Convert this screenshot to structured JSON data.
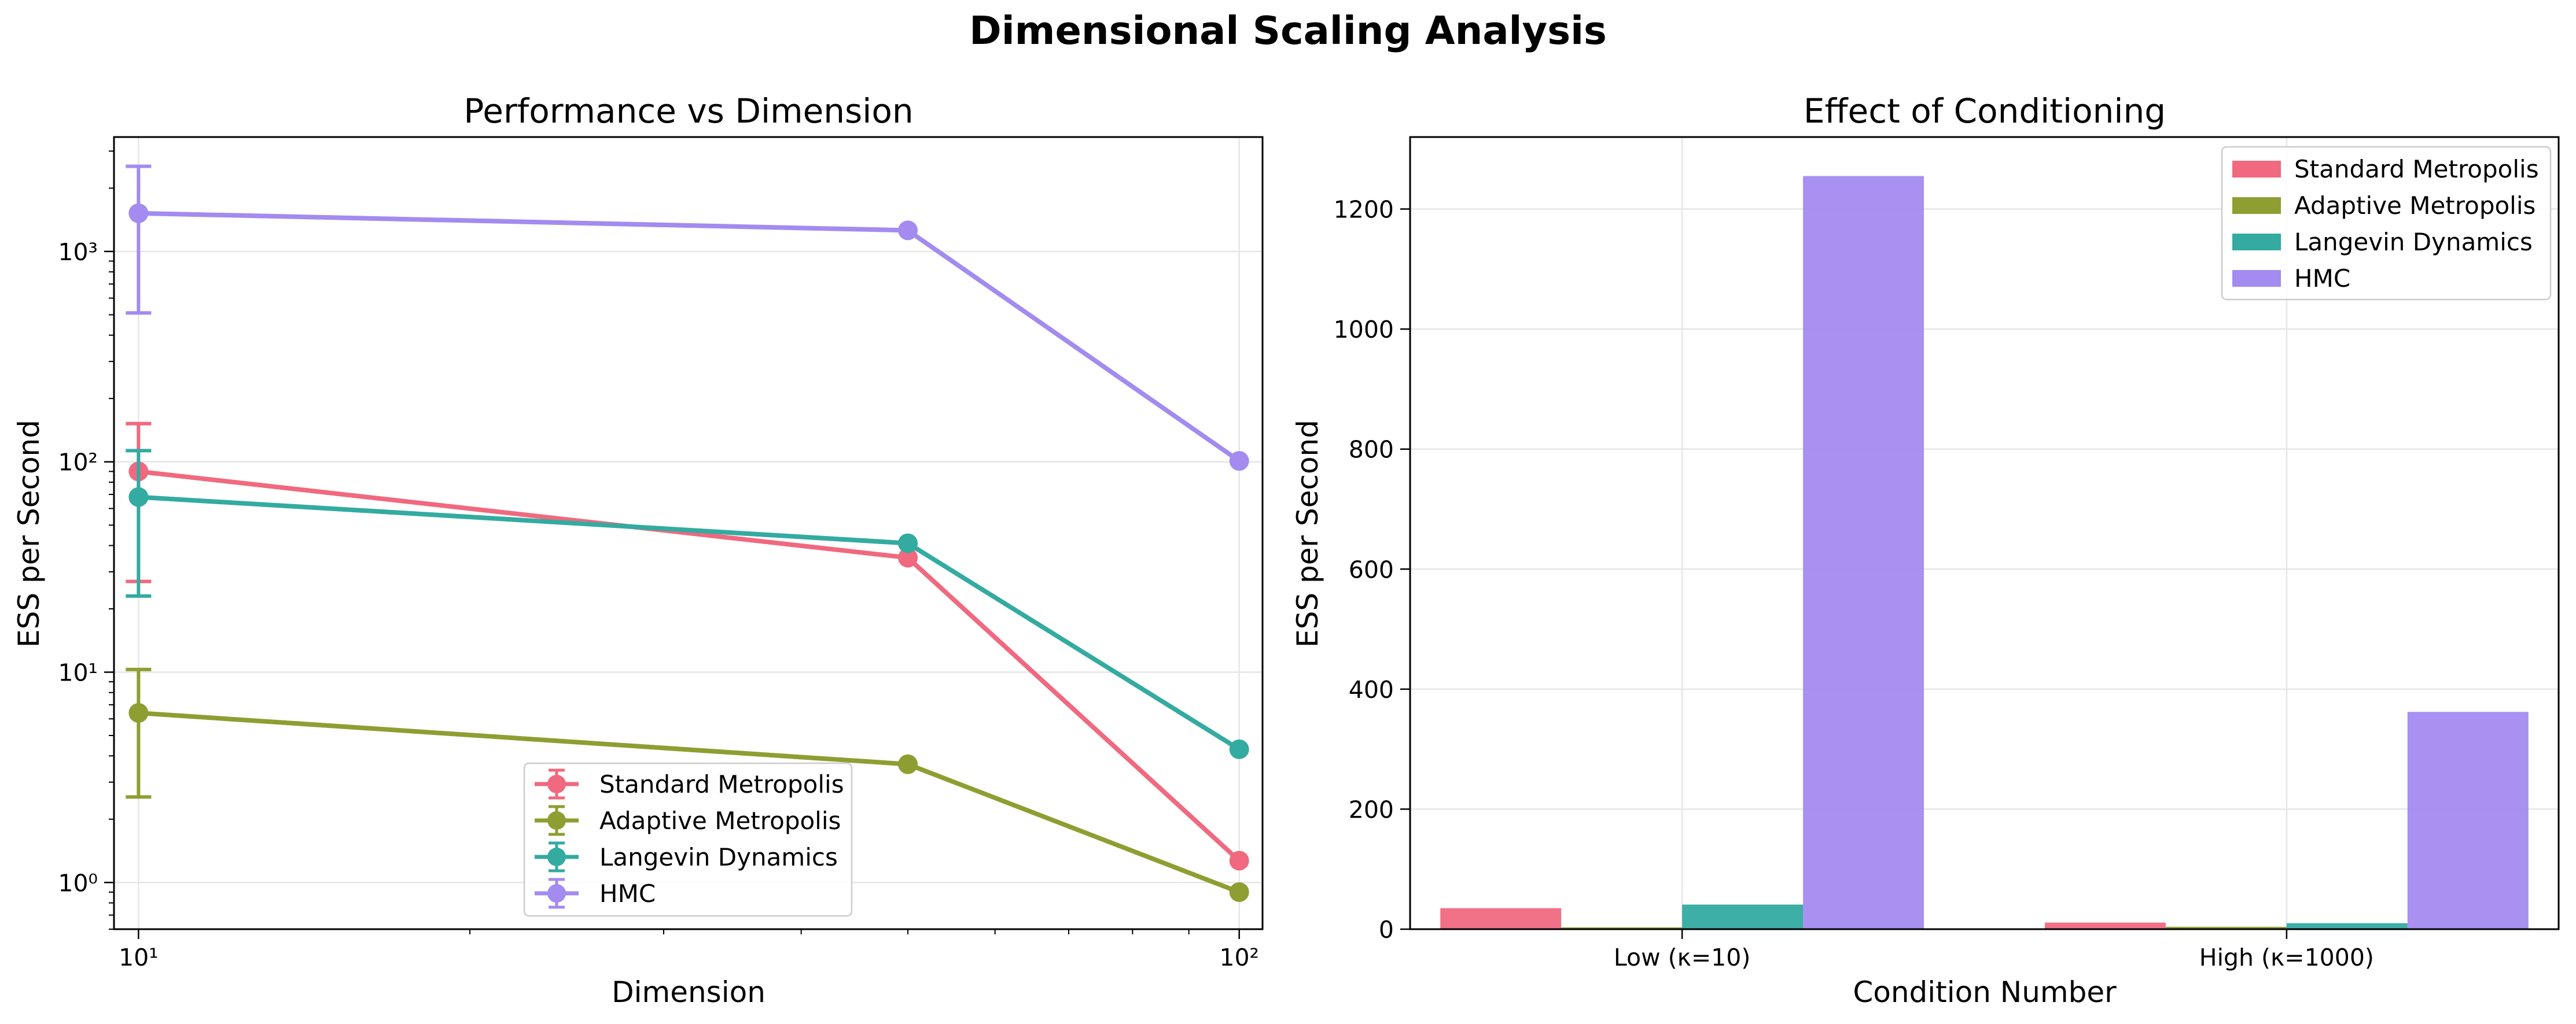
{
  "figure": {
    "title": "Dimensional Scaling Analysis"
  },
  "colors": {
    "Standard Metropolis": "#f0697f",
    "Adaptive Metropolis": "#8f9e31",
    "Langevin Dynamics": "#33aba1",
    "HMC": "#a38bf0"
  },
  "chart_data": [
    {
      "type": "line",
      "title": "Performance vs Dimension",
      "xlabel": "Dimension",
      "ylabel": "ESS per Second",
      "xscale": "log",
      "yscale": "log",
      "xlim": [
        9.5,
        105
      ],
      "ylim": [
        0.6,
        3500
      ],
      "x_ticks": [
        10,
        100
      ],
      "x_tick_labels": [
        "10¹",
        "10²"
      ],
      "y_ticks": [
        1,
        10,
        100,
        1000
      ],
      "y_tick_labels": [
        "10⁰",
        "10¹",
        "10²",
        "10³"
      ],
      "grid": true,
      "legend_position": "lower center",
      "x": [
        10,
        50,
        100
      ],
      "series": [
        {
          "name": "Standard Metropolis",
          "values": [
            90,
            35,
            1.27
          ],
          "error_first": [
            27,
            152
          ]
        },
        {
          "name": "Adaptive Metropolis",
          "values": [
            6.4,
            3.65,
            0.9
          ],
          "error_first": [
            2.55,
            10.3
          ]
        },
        {
          "name": "Langevin Dynamics",
          "values": [
            68,
            41,
            4.3
          ],
          "error_first": [
            23,
            113
          ]
        },
        {
          "name": "HMC",
          "values": [
            1520,
            1260,
            101
          ],
          "error_first": [
            510,
            2540
          ]
        }
      ]
    },
    {
      "type": "bar",
      "title": "Effect of Conditioning",
      "xlabel": "Condition Number",
      "ylabel": "ESS per Second",
      "ylim": [
        0,
        1320
      ],
      "y_ticks": [
        0,
        200,
        400,
        600,
        800,
        1000,
        1200
      ],
      "grid": true,
      "legend_position": "upper right",
      "categories": [
        "Low (κ=10)",
        "High (κ=1000)"
      ],
      "series": [
        {
          "name": "Standard Metropolis",
          "values": [
            35,
            11
          ]
        },
        {
          "name": "Adaptive Metropolis",
          "values": [
            3,
            4
          ]
        },
        {
          "name": "Langevin Dynamics",
          "values": [
            41,
            10
          ]
        },
        {
          "name": "HMC",
          "values": [
            1255,
            362
          ]
        }
      ]
    }
  ]
}
